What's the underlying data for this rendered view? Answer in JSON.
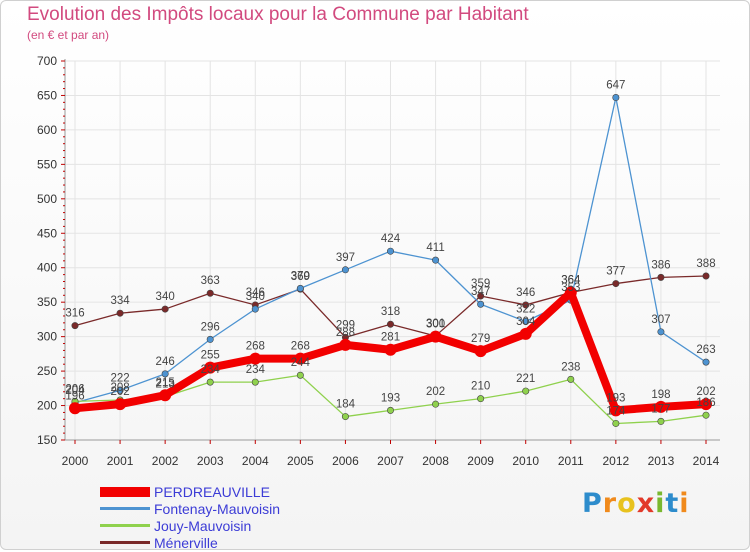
{
  "title": "Evolution des Impôts locaux pour la Commune par Habitant",
  "subtitle": "(en € et par an)",
  "logo": {
    "letters": [
      "P",
      "r",
      "o",
      "x",
      "i",
      "t",
      "i"
    ],
    "colors": [
      "#2d8ccc",
      "#f08a1c",
      "#e8c21e",
      "#e23a2a",
      "#7ab82f",
      "#2d8ccc",
      "#f08a1c"
    ]
  },
  "chart_data": {
    "type": "line",
    "title": "Evolution des Impôts locaux pour la Commune par Habitant",
    "subtitle": "(en € et par an)",
    "x": [
      "2000",
      "2001",
      "2002",
      "2003",
      "2004",
      "2005",
      "2006",
      "2007",
      "2008",
      "2009",
      "2010",
      "2011",
      "2012",
      "2013",
      "2014"
    ],
    "ylim": [
      150,
      700
    ],
    "yticks": [
      150,
      200,
      250,
      300,
      350,
      400,
      450,
      500,
      550,
      600,
      650,
      700
    ],
    "grid": true,
    "legend": "bottom-left",
    "series": [
      {
        "name": "PERDREAUVILLE",
        "color": "#f20000",
        "values": [
          196,
          202,
          215,
          255,
          268,
          268,
          288,
          281,
          300,
          279,
          304,
          364,
          193,
          198,
          202
        ]
      },
      {
        "name": "Fontenay-Mauvoisin",
        "color": "#4d93d1",
        "values": [
          204,
          222,
          246,
          296,
          340,
          370,
          397,
          424,
          411,
          347,
          322,
          353,
          647,
          307,
          263
        ]
      },
      {
        "name": "Jouy-Mauvoisin",
        "color": "#8fd14d",
        "values": [
          206,
          208,
          213,
          234,
          234,
          244,
          184,
          193,
          202,
          210,
          221,
          238,
          174,
          177,
          186
        ]
      },
      {
        "name": "Ménerville",
        "color": "#7a2a2a",
        "values": [
          316,
          334,
          340,
          363,
          346,
          369,
          299,
          318,
          301,
          359,
          346,
          364,
          377,
          386,
          388
        ]
      }
    ]
  }
}
